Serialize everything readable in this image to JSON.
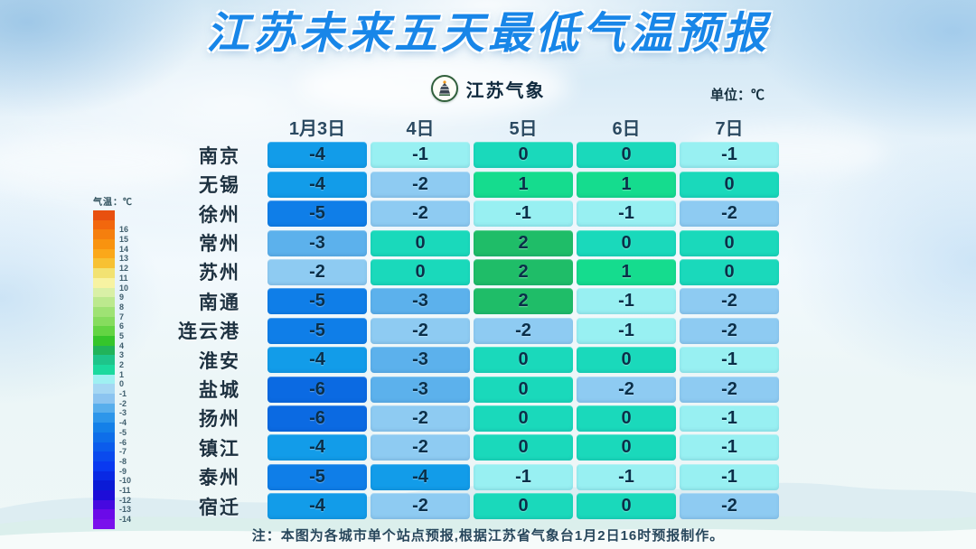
{
  "page": {
    "title": "江苏未来五天最低气温预报",
    "note": "注：本图为各城市单个站点预报,根据江苏省气象台1月2日16时预报制作。"
  },
  "header": {
    "logo_text": "江苏气象",
    "unit_label": "单位：℃"
  },
  "colors": {
    "title_blue": "#1886e8",
    "header_text": "#2b4a62",
    "cell_text": "#0a2f49",
    "cell_by_value": {
      "2": "#1fbd68",
      "1": "#15dc8e",
      "0": "#1ad9bb",
      "-1": "#98f0f2",
      "-2": "#8ecbf2",
      "-3": "#5cb1ec",
      "-4": "#129ce9",
      "-5": "#0f7ee8",
      "-6": "#0b6ae2"
    }
  },
  "legend": {
    "title": "气温：℃",
    "items": [
      {
        "color": "#e8500f",
        "label": ""
      },
      {
        "color": "#f2670d",
        "label": "16"
      },
      {
        "color": "#f57f0e",
        "label": "15"
      },
      {
        "color": "#f9930f",
        "label": "14"
      },
      {
        "color": "#fba81a",
        "label": "13"
      },
      {
        "color": "#f7c133",
        "label": "12"
      },
      {
        "color": "#f2e272",
        "label": "11"
      },
      {
        "color": "#f7f3a2",
        "label": "10"
      },
      {
        "color": "#d9f0a6",
        "label": "9"
      },
      {
        "color": "#bce98e",
        "label": "8"
      },
      {
        "color": "#9fe274",
        "label": "7"
      },
      {
        "color": "#86dc5e",
        "label": "6"
      },
      {
        "color": "#63d443",
        "label": "5"
      },
      {
        "color": "#35c52b",
        "label": "4"
      },
      {
        "color": "#21b35a",
        "label": "3"
      },
      {
        "color": "#1ec48a",
        "label": "2"
      },
      {
        "color": "#1bd99e",
        "label": "1"
      },
      {
        "color": "#9ff0f2",
        "label": "0"
      },
      {
        "color": "#a5d7f3",
        "label": "-1"
      },
      {
        "color": "#8cc4f0",
        "label": "-2"
      },
      {
        "color": "#58aeec",
        "label": "-3"
      },
      {
        "color": "#2d96ea",
        "label": "-4"
      },
      {
        "color": "#1480e8",
        "label": "-5"
      },
      {
        "color": "#0e6ee9",
        "label": "-6"
      },
      {
        "color": "#0b5cec",
        "label": "-7"
      },
      {
        "color": "#0a4aee",
        "label": "-8"
      },
      {
        "color": "#0939f0",
        "label": "-9"
      },
      {
        "color": "#0929e4",
        "label": "-10"
      },
      {
        "color": "#0a1bd6",
        "label": "-11"
      },
      {
        "color": "#1d0dd8",
        "label": "-12"
      },
      {
        "color": "#4609e0",
        "label": "-13"
      },
      {
        "color": "#6b0ae8",
        "label": "-14"
      },
      {
        "color": "#7a10ec",
        "label": ""
      }
    ]
  },
  "chart_data": {
    "type": "heatmap",
    "title": "江苏未来五天最低气温预报",
    "unit": "℃",
    "legend_title": "气温：℃",
    "legend_range": [
      -14,
      16
    ],
    "columns": [
      "1月3日",
      "4日",
      "5日",
      "6日",
      "7日"
    ],
    "rows": [
      {
        "city": "南京",
        "values": [
          -4,
          -1,
          0,
          0,
          -1
        ]
      },
      {
        "city": "无锡",
        "values": [
          -4,
          -2,
          1,
          1,
          0
        ]
      },
      {
        "city": "徐州",
        "values": [
          -5,
          -2,
          -1,
          -1,
          -2
        ]
      },
      {
        "city": "常州",
        "values": [
          -3,
          0,
          2,
          0,
          0
        ]
      },
      {
        "city": "苏州",
        "values": [
          -2,
          0,
          2,
          1,
          0
        ]
      },
      {
        "city": "南通",
        "values": [
          -5,
          -3,
          2,
          -1,
          -2
        ]
      },
      {
        "city": "连云港",
        "values": [
          -5,
          -2,
          -2,
          -1,
          -2
        ]
      },
      {
        "city": "淮安",
        "values": [
          -4,
          -3,
          0,
          0,
          -1
        ]
      },
      {
        "city": "盐城",
        "values": [
          -6,
          -3,
          0,
          -2,
          -2
        ]
      },
      {
        "city": "扬州",
        "values": [
          -6,
          -2,
          0,
          0,
          -1
        ]
      },
      {
        "city": "镇江",
        "values": [
          -4,
          -2,
          0,
          0,
          -1
        ]
      },
      {
        "city": "泰州",
        "values": [
          -5,
          -4,
          -1,
          -1,
          -1
        ]
      },
      {
        "city": "宿迁",
        "values": [
          -4,
          -2,
          0,
          0,
          -2
        ]
      }
    ]
  }
}
